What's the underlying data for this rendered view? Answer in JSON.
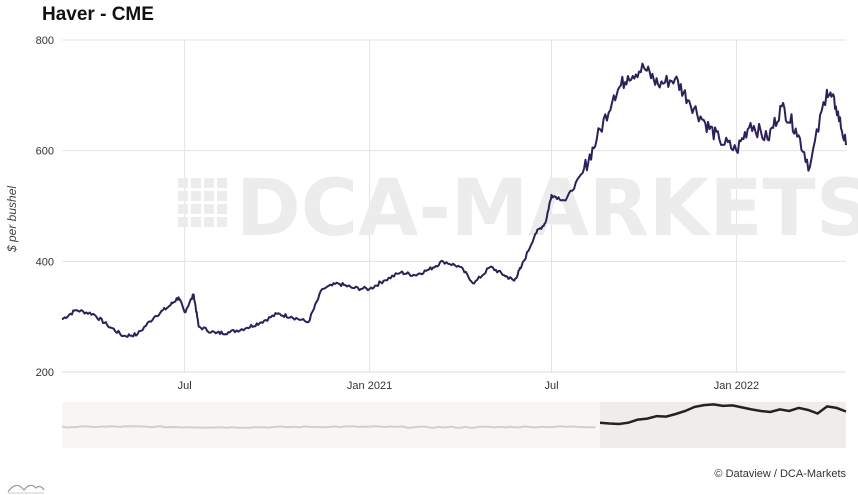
{
  "title": "Haver - CME",
  "credit": "© Dataview / DCA-Markets",
  "watermark": "DCA-MARKETS",
  "colors": {
    "line": "#2e2159",
    "navigator_past": "#cfcfcf",
    "navigator_selected": "#222222",
    "navigator_selection_bg": "#efecea",
    "grid": "#e3e3e3"
  },
  "chart_data": {
    "type": "line",
    "title": "Haver - CME",
    "ylabel": "$ per bushel",
    "xlabel": "",
    "ylim": [
      200,
      800
    ],
    "yticks": [
      200,
      400,
      600,
      800
    ],
    "xlim": [
      "2020-03-01",
      "2022-04-20"
    ],
    "xticks": [
      {
        "date": "2020-07-01",
        "label": "Jul"
      },
      {
        "date": "2021-01-01",
        "label": "Jan 2021"
      },
      {
        "date": "2021-07-01",
        "label": "Jul"
      },
      {
        "date": "2022-01-01",
        "label": "Jan 2022"
      }
    ],
    "grid": true,
    "series": [
      {
        "values_note": "approximate readings from chart",
        "x": [
          "2020-03-01",
          "2020-03-15",
          "2020-04-01",
          "2020-04-15",
          "2020-05-01",
          "2020-05-15",
          "2020-06-01",
          "2020-06-15",
          "2020-06-25",
          "2020-07-01",
          "2020-07-10",
          "2020-07-15",
          "2020-08-01",
          "2020-08-15",
          "2020-09-01",
          "2020-09-15",
          "2020-10-01",
          "2020-10-15",
          "2020-11-01",
          "2020-11-15",
          "2020-12-01",
          "2020-12-15",
          "2021-01-01",
          "2021-01-15",
          "2021-02-01",
          "2021-02-15",
          "2021-03-01",
          "2021-03-15",
          "2021-04-01",
          "2021-04-15",
          "2021-05-01",
          "2021-05-15",
          "2021-05-25",
          "2021-06-01",
          "2021-06-15",
          "2021-06-25",
          "2021-07-01",
          "2021-07-15",
          "2021-08-01",
          "2021-08-15",
          "2021-09-01",
          "2021-09-15",
          "2021-10-01",
          "2021-10-15",
          "2021-11-01",
          "2021-11-15",
          "2021-12-01",
          "2021-12-15",
          "2022-01-01",
          "2022-01-15",
          "2022-02-01",
          "2022-02-15",
          "2022-03-01",
          "2022-03-15",
          "2022-04-01",
          "2022-04-10",
          "2022-04-20"
        ],
        "values": [
          295,
          312,
          305,
          285,
          265,
          268,
          300,
          318,
          335,
          308,
          340,
          282,
          270,
          272,
          280,
          290,
          305,
          300,
          290,
          350,
          360,
          352,
          350,
          365,
          380,
          375,
          385,
          400,
          390,
          360,
          390,
          375,
          365,
          390,
          450,
          470,
          520,
          510,
          560,
          620,
          700,
          735,
          750,
          720,
          730,
          690,
          650,
          620,
          600,
          650,
          620,
          680,
          640,
          570,
          710,
          680,
          610
        ]
      }
    ]
  }
}
